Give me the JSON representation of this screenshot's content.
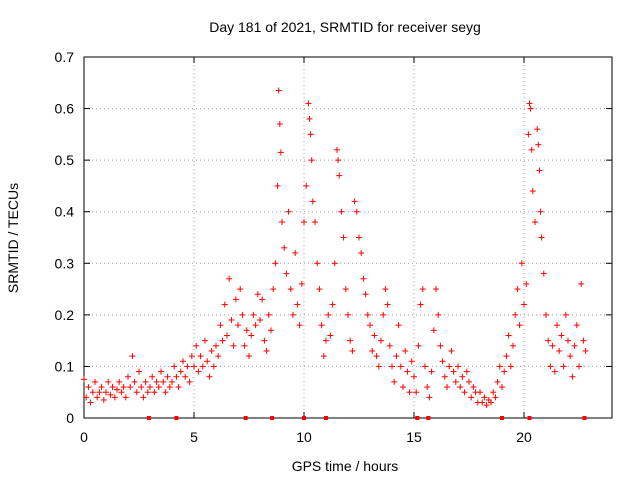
{
  "chart_data": {
    "type": "scatter",
    "title": "Day 181 of 2021, SRMTID for receiver seyg",
    "xlabel": "GPS time / hours",
    "ylabel": "SRMTID / TECUs",
    "xlim": [
      0,
      24
    ],
    "ylim": [
      0,
      0.7
    ],
    "xticks": [
      0,
      5,
      10,
      15,
      20
    ],
    "yticks": [
      0,
      0.1,
      0.2,
      0.3,
      0.4,
      0.5,
      0.6,
      0.7
    ],
    "xtick_labels": [
      "0",
      "5",
      "10",
      "15",
      "20"
    ],
    "ytick_labels": [
      "0",
      "0.1",
      "0.2",
      "0.3",
      "0.4",
      "0.5",
      "0.6",
      "0.7"
    ],
    "grid": true,
    "marker": "+",
    "series_color": "#ff0000",
    "series": [
      {
        "name": "SRMTID",
        "points": [
          [
            0.0,
            0.075
          ],
          [
            0.1,
            0.04
          ],
          [
            0.2,
            0.06
          ],
          [
            0.3,
            0.03
          ],
          [
            0.4,
            0.05
          ],
          [
            0.5,
            0.07
          ],
          [
            0.6,
            0.04
          ],
          [
            0.7,
            0.05
          ],
          [
            0.8,
            0.06
          ],
          [
            0.9,
            0.035
          ],
          [
            1.0,
            0.05
          ],
          [
            1.1,
            0.07
          ],
          [
            1.2,
            0.045
          ],
          [
            1.3,
            0.06
          ],
          [
            1.4,
            0.04
          ],
          [
            1.5,
            0.055
          ],
          [
            1.6,
            0.07
          ],
          [
            1.7,
            0.05
          ],
          [
            1.8,
            0.06
          ],
          [
            1.9,
            0.04
          ],
          [
            2.0,
            0.08
          ],
          [
            2.1,
            0.06
          ],
          [
            2.2,
            0.12
          ],
          [
            2.3,
            0.07
          ],
          [
            2.4,
            0.05
          ],
          [
            2.5,
            0.09
          ],
          [
            2.6,
            0.06
          ],
          [
            2.7,
            0.04
          ],
          [
            2.8,
            0.07
          ],
          [
            2.9,
            0.05
          ],
          [
            3.0,
            0.06
          ],
          [
            3.1,
            0.08
          ],
          [
            3.2,
            0.05
          ],
          [
            3.3,
            0.07
          ],
          [
            3.4,
            0.06
          ],
          [
            3.5,
            0.09
          ],
          [
            3.6,
            0.07
          ],
          [
            3.7,
            0.05
          ],
          [
            3.8,
            0.08
          ],
          [
            3.9,
            0.06
          ],
          [
            4.0,
            0.07
          ],
          [
            4.1,
            0.1
          ],
          [
            4.2,
            0.08
          ],
          [
            4.3,
            0.06
          ],
          [
            4.4,
            0.09
          ],
          [
            4.5,
            0.11
          ],
          [
            4.6,
            0.08
          ],
          [
            4.7,
            0.1
          ],
          [
            4.8,
            0.07
          ],
          [
            4.9,
            0.12
          ],
          [
            5.0,
            0.1
          ],
          [
            5.1,
            0.14
          ],
          [
            5.2,
            0.09
          ],
          [
            5.3,
            0.12
          ],
          [
            5.4,
            0.1
          ],
          [
            5.5,
            0.15
          ],
          [
            5.6,
            0.11
          ],
          [
            5.7,
            0.08
          ],
          [
            5.8,
            0.13
          ],
          [
            5.9,
            0.1
          ],
          [
            6.0,
            0.14
          ],
          [
            6.1,
            0.12
          ],
          [
            6.2,
            0.18
          ],
          [
            6.3,
            0.15
          ],
          [
            6.4,
            0.22
          ],
          [
            6.5,
            0.16
          ],
          [
            6.6,
            0.27
          ],
          [
            6.7,
            0.19
          ],
          [
            6.8,
            0.14
          ],
          [
            6.9,
            0.23
          ],
          [
            7.0,
            0.18
          ],
          [
            7.1,
            0.25
          ],
          [
            7.2,
            0.2
          ],
          [
            7.3,
            0.14
          ],
          [
            7.4,
            0.17
          ],
          [
            7.5,
            0.12
          ],
          [
            7.6,
            0.16
          ],
          [
            7.7,
            0.2
          ],
          [
            7.8,
            0.18
          ],
          [
            7.9,
            0.24
          ],
          [
            8.0,
            0.19
          ],
          [
            8.1,
            0.23
          ],
          [
            8.2,
            0.15
          ],
          [
            8.3,
            0.13
          ],
          [
            8.4,
            0.2
          ],
          [
            8.5,
            0.17
          ],
          [
            8.6,
            0.25
          ],
          [
            8.7,
            0.3
          ],
          [
            8.8,
            0.45
          ],
          [
            8.85,
            0.635
          ],
          [
            8.9,
            0.57
          ],
          [
            8.95,
            0.515
          ],
          [
            9.0,
            0.38
          ],
          [
            9.1,
            0.33
          ],
          [
            9.2,
            0.28
          ],
          [
            9.3,
            0.4
          ],
          [
            9.4,
            0.25
          ],
          [
            9.5,
            0.2
          ],
          [
            9.6,
            0.32
          ],
          [
            9.7,
            0.22
          ],
          [
            9.8,
            0.18
          ],
          [
            9.9,
            0.26
          ],
          [
            10.0,
            0.38
          ],
          [
            10.1,
            0.45
          ],
          [
            10.2,
            0.61
          ],
          [
            10.25,
            0.58
          ],
          [
            10.3,
            0.55
          ],
          [
            10.35,
            0.5
          ],
          [
            10.4,
            0.42
          ],
          [
            10.5,
            0.38
          ],
          [
            10.6,
            0.3
          ],
          [
            10.7,
            0.25
          ],
          [
            10.8,
            0.18
          ],
          [
            10.9,
            0.12
          ],
          [
            11.0,
            0.15
          ],
          [
            11.1,
            0.2
          ],
          [
            11.2,
            0.16
          ],
          [
            11.3,
            0.22
          ],
          [
            11.4,
            0.3
          ],
          [
            11.5,
            0.52
          ],
          [
            11.55,
            0.5
          ],
          [
            11.6,
            0.47
          ],
          [
            11.7,
            0.4
          ],
          [
            11.8,
            0.35
          ],
          [
            11.9,
            0.25
          ],
          [
            12.0,
            0.2
          ],
          [
            12.1,
            0.15
          ],
          [
            12.2,
            0.13
          ],
          [
            12.3,
            0.42
          ],
          [
            12.4,
            0.4
          ],
          [
            12.5,
            0.35
          ],
          [
            12.6,
            0.32
          ],
          [
            12.7,
            0.27
          ],
          [
            12.8,
            0.24
          ],
          [
            12.9,
            0.2
          ],
          [
            13.0,
            0.18
          ],
          [
            13.1,
            0.13
          ],
          [
            13.2,
            0.16
          ],
          [
            13.3,
            0.12
          ],
          [
            13.4,
            0.1
          ],
          [
            13.5,
            0.15
          ],
          [
            13.6,
            0.2
          ],
          [
            13.7,
            0.25
          ],
          [
            13.8,
            0.22
          ],
          [
            13.9,
            0.14
          ],
          [
            14.0,
            0.1
          ],
          [
            14.1,
            0.07
          ],
          [
            14.2,
            0.12
          ],
          [
            14.3,
            0.18
          ],
          [
            14.4,
            0.1
          ],
          [
            14.5,
            0.06
          ],
          [
            14.6,
            0.13
          ],
          [
            14.7,
            0.09
          ],
          [
            14.8,
            0.05
          ],
          [
            14.9,
            0.11
          ],
          [
            15.0,
            0.08
          ],
          [
            15.1,
            0.05
          ],
          [
            15.2,
            0.14
          ],
          [
            15.3,
            0.22
          ],
          [
            15.4,
            0.25
          ],
          [
            15.5,
            0.1
          ],
          [
            15.6,
            0.06
          ],
          [
            15.7,
            0.04
          ],
          [
            15.8,
            0.09
          ],
          [
            15.9,
            0.17
          ],
          [
            16.0,
            0.25
          ],
          [
            16.1,
            0.2
          ],
          [
            16.2,
            0.14
          ],
          [
            16.3,
            0.11
          ],
          [
            16.4,
            0.08
          ],
          [
            16.5,
            0.06
          ],
          [
            16.6,
            0.1
          ],
          [
            16.7,
            0.13
          ],
          [
            16.8,
            0.09
          ],
          [
            16.9,
            0.07
          ],
          [
            17.0,
            0.1
          ],
          [
            17.1,
            0.06
          ],
          [
            17.2,
            0.08
          ],
          [
            17.3,
            0.05
          ],
          [
            17.4,
            0.09
          ],
          [
            17.5,
            0.07
          ],
          [
            17.6,
            0.04
          ],
          [
            17.7,
            0.06
          ],
          [
            17.8,
            0.05
          ],
          [
            17.9,
            0.03
          ],
          [
            18.0,
            0.05
          ],
          [
            18.1,
            0.03
          ],
          [
            18.2,
            0.04
          ],
          [
            18.3,
            0.025
          ],
          [
            18.4,
            0.035
          ],
          [
            18.5,
            0.03
          ],
          [
            18.6,
            0.05
          ],
          [
            18.7,
            0.04
          ],
          [
            18.8,
            0.07
          ],
          [
            18.9,
            0.1
          ],
          [
            19.0,
            0.06
          ],
          [
            19.1,
            0.09
          ],
          [
            19.2,
            0.12
          ],
          [
            19.3,
            0.16
          ],
          [
            19.4,
            0.1
          ],
          [
            19.5,
            0.14
          ],
          [
            19.6,
            0.2
          ],
          [
            19.7,
            0.25
          ],
          [
            19.8,
            0.18
          ],
          [
            19.9,
            0.3
          ],
          [
            20.0,
            0.22
          ],
          [
            20.1,
            0.26
          ],
          [
            20.2,
            0.55
          ],
          [
            20.25,
            0.61
          ],
          [
            20.3,
            0.6
          ],
          [
            20.35,
            0.52
          ],
          [
            20.4,
            0.44
          ],
          [
            20.5,
            0.38
          ],
          [
            20.6,
            0.56
          ],
          [
            20.65,
            0.53
          ],
          [
            20.7,
            0.48
          ],
          [
            20.75,
            0.4
          ],
          [
            20.8,
            0.35
          ],
          [
            20.9,
            0.28
          ],
          [
            21.0,
            0.2
          ],
          [
            21.1,
            0.15
          ],
          [
            21.2,
            0.1
          ],
          [
            21.3,
            0.14
          ],
          [
            21.4,
            0.09
          ],
          [
            21.5,
            0.18
          ],
          [
            21.6,
            0.13
          ],
          [
            21.7,
            0.16
          ],
          [
            21.8,
            0.1
          ],
          [
            21.9,
            0.2
          ],
          [
            22.0,
            0.15
          ],
          [
            22.1,
            0.12
          ],
          [
            22.2,
            0.08
          ],
          [
            22.3,
            0.14
          ],
          [
            22.4,
            0.18
          ],
          [
            22.5,
            0.1
          ],
          [
            22.6,
            0.26
          ],
          [
            22.7,
            0.15
          ],
          [
            22.8,
            0.13
          ]
        ]
      }
    ],
    "bottom_markers_x": [
      2.95,
      4.2,
      7.35,
      8.55,
      10.0,
      11.0,
      15.15,
      15.65,
      19.0,
      20.25,
      22.75
    ]
  }
}
